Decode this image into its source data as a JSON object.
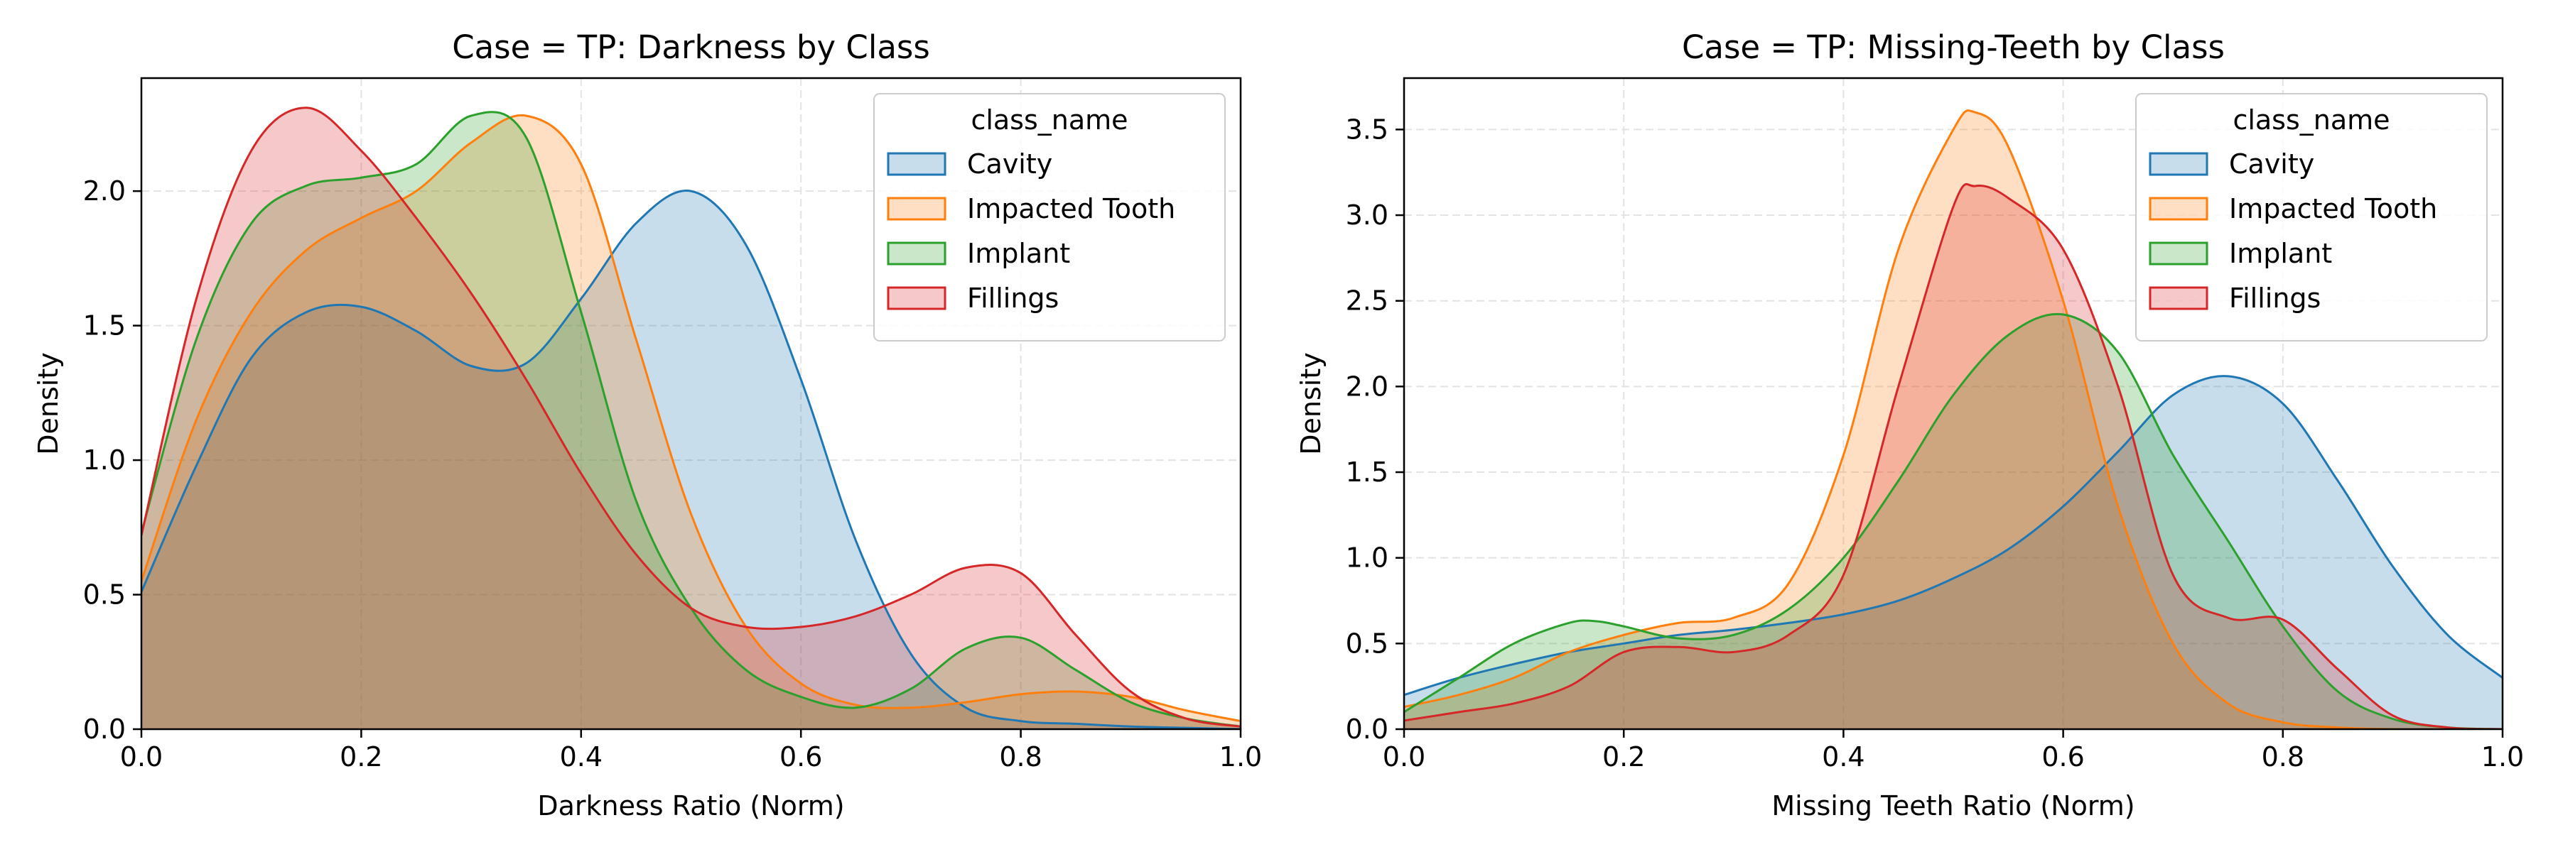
{
  "chart_data": [
    {
      "type": "area",
      "title": "Case = TP: Darkness by Class",
      "xlabel": "Darkness Ratio (Norm)",
      "ylabel": "Density",
      "xlim": [
        0,
        1
      ],
      "ylim": [
        0,
        2.42
      ],
      "xticks": [
        "0.0",
        "0.2",
        "0.4",
        "0.6",
        "0.8",
        "1.0"
      ],
      "yticks": [
        "0.0",
        "0.5",
        "1.0",
        "1.5",
        "2.0"
      ],
      "grid": true,
      "legend": {
        "title": "class_name",
        "placement": "top-right"
      },
      "series": [
        {
          "name": "Cavity",
          "color": "#1f77b4",
          "x": [
            0,
            0.05,
            0.1,
            0.15,
            0.2,
            0.25,
            0.3,
            0.35,
            0.4,
            0.45,
            0.5,
            0.55,
            0.6,
            0.65,
            0.7,
            0.75,
            0.8,
            0.85,
            0.9,
            0.95,
            1.0
          ],
          "y": [
            0.51,
            0.98,
            1.38,
            1.55,
            1.57,
            1.48,
            1.35,
            1.36,
            1.6,
            1.88,
            2.0,
            1.8,
            1.3,
            0.7,
            0.28,
            0.08,
            0.03,
            0.02,
            0.01,
            0.005,
            0.0
          ]
        },
        {
          "name": "Impacted Tooth",
          "color": "#ff7f0e",
          "x": [
            0,
            0.05,
            0.1,
            0.15,
            0.2,
            0.25,
            0.3,
            0.35,
            0.4,
            0.45,
            0.5,
            0.55,
            0.6,
            0.65,
            0.7,
            0.75,
            0.8,
            0.85,
            0.9,
            0.95,
            1.0
          ],
          "y": [
            0.55,
            1.15,
            1.55,
            1.78,
            1.9,
            2.0,
            2.18,
            2.28,
            2.1,
            1.45,
            0.8,
            0.38,
            0.17,
            0.09,
            0.08,
            0.1,
            0.13,
            0.14,
            0.12,
            0.07,
            0.03
          ]
        },
        {
          "name": "Implant",
          "color": "#2ca02c",
          "x": [
            0,
            0.05,
            0.1,
            0.15,
            0.2,
            0.25,
            0.3,
            0.35,
            0.4,
            0.45,
            0.5,
            0.55,
            0.6,
            0.65,
            0.7,
            0.75,
            0.8,
            0.85,
            0.9,
            0.95,
            1.0
          ],
          "y": [
            0.73,
            1.45,
            1.88,
            2.02,
            2.05,
            2.1,
            2.28,
            2.2,
            1.55,
            0.85,
            0.45,
            0.22,
            0.12,
            0.08,
            0.15,
            0.3,
            0.34,
            0.22,
            0.1,
            0.04,
            0.01
          ]
        },
        {
          "name": "Fillings",
          "color": "#d62728",
          "x": [
            0,
            0.05,
            0.1,
            0.15,
            0.2,
            0.25,
            0.3,
            0.35,
            0.4,
            0.45,
            0.5,
            0.55,
            0.6,
            0.65,
            0.7,
            0.75,
            0.8,
            0.85,
            0.9,
            0.95,
            1.0
          ],
          "y": [
            0.72,
            1.6,
            2.15,
            2.31,
            2.15,
            1.9,
            1.62,
            1.3,
            0.95,
            0.65,
            0.45,
            0.38,
            0.38,
            0.42,
            0.5,
            0.6,
            0.58,
            0.35,
            0.14,
            0.04,
            0.01
          ]
        }
      ]
    },
    {
      "type": "area",
      "title": "Case = TP: Missing-Teeth by Class",
      "xlabel": "Missing Teeth Ratio (Norm)",
      "ylabel": "Density",
      "xlim": [
        0,
        1
      ],
      "ylim": [
        0,
        3.8
      ],
      "xticks": [
        "0.0",
        "0.2",
        "0.4",
        "0.6",
        "0.8",
        "1.0"
      ],
      "yticks": [
        "0.0",
        "0.5",
        "1.0",
        "1.5",
        "2.0",
        "2.5",
        "3.0",
        "3.5"
      ],
      "grid": true,
      "legend": {
        "title": "class_name",
        "placement": "top-right"
      },
      "series": [
        {
          "name": "Cavity",
          "color": "#1f77b4",
          "x": [
            0,
            0.05,
            0.1,
            0.15,
            0.2,
            0.25,
            0.3,
            0.35,
            0.4,
            0.45,
            0.5,
            0.55,
            0.6,
            0.65,
            0.7,
            0.75,
            0.8,
            0.85,
            0.9,
            0.95,
            1.0
          ],
          "y": [
            0.2,
            0.3,
            0.38,
            0.45,
            0.5,
            0.55,
            0.58,
            0.62,
            0.67,
            0.75,
            0.88,
            1.05,
            1.3,
            1.62,
            1.95,
            2.06,
            1.9,
            1.45,
            0.95,
            0.55,
            0.3
          ]
        },
        {
          "name": "Impacted Tooth",
          "color": "#ff7f0e",
          "x": [
            0,
            0.05,
            0.1,
            0.15,
            0.2,
            0.25,
            0.3,
            0.35,
            0.4,
            0.45,
            0.5,
            0.52,
            0.55,
            0.6,
            0.65,
            0.7,
            0.75,
            0.8,
            0.85,
            0.9,
            0.95,
            1.0
          ],
          "y": [
            0.13,
            0.2,
            0.3,
            0.45,
            0.55,
            0.62,
            0.65,
            0.85,
            1.6,
            2.8,
            3.5,
            3.6,
            3.4,
            2.5,
            1.3,
            0.5,
            0.15,
            0.04,
            0.01,
            0.0,
            0.0,
            0.0
          ]
        },
        {
          "name": "Implant",
          "color": "#2ca02c",
          "x": [
            0,
            0.05,
            0.1,
            0.15,
            0.175,
            0.2,
            0.25,
            0.3,
            0.35,
            0.4,
            0.45,
            0.5,
            0.55,
            0.6,
            0.65,
            0.7,
            0.75,
            0.8,
            0.85,
            0.9,
            0.95,
            1.0
          ],
          "y": [
            0.1,
            0.3,
            0.5,
            0.62,
            0.63,
            0.6,
            0.53,
            0.55,
            0.7,
            1.0,
            1.45,
            1.95,
            2.3,
            2.42,
            2.2,
            1.6,
            1.1,
            0.6,
            0.22,
            0.06,
            0.01,
            0.0
          ]
        },
        {
          "name": "Fillings",
          "color": "#d62728",
          "x": [
            0,
            0.05,
            0.1,
            0.15,
            0.2,
            0.25,
            0.3,
            0.35,
            0.4,
            0.45,
            0.5,
            0.52,
            0.55,
            0.6,
            0.65,
            0.7,
            0.75,
            0.8,
            0.85,
            0.9,
            0.95,
            1.0
          ],
          "y": [
            0.05,
            0.1,
            0.15,
            0.25,
            0.45,
            0.48,
            0.45,
            0.55,
            0.9,
            2.0,
            3.05,
            3.17,
            3.1,
            2.8,
            2.0,
            0.9,
            0.65,
            0.64,
            0.35,
            0.08,
            0.01,
            0.0
          ]
        }
      ]
    }
  ]
}
